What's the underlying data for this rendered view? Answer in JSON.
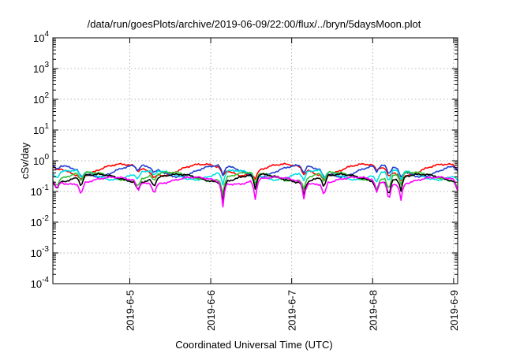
{
  "chart_data": {
    "type": "line",
    "title": "/data/run/goesPlots/archive/2019-06-09/22:00/flux/../bryn/5daysMoon.plot",
    "xlabel": "Coordinated Universal Time (UTC)",
    "ylabel": "cSv/day",
    "yscale": "log",
    "ylim": [
      0.0001,
      10000
    ],
    "xlim": [
      0,
      5
    ],
    "grid": true,
    "y_ticks": [
      {
        "value": 0.0001,
        "base": "10",
        "exp": "-4"
      },
      {
        "value": 0.001,
        "base": "10",
        "exp": "-3"
      },
      {
        "value": 0.01,
        "base": "10",
        "exp": "-2"
      },
      {
        "value": 0.1,
        "base": "10",
        "exp": "-1"
      },
      {
        "value": 1,
        "base": "10",
        "exp": "0"
      },
      {
        "value": 10,
        "base": "10",
        "exp": "1"
      },
      {
        "value": 100,
        "base": "10",
        "exp": "2"
      },
      {
        "value": 1000,
        "base": "10",
        "exp": "3"
      },
      {
        "value": 10000,
        "base": "10",
        "exp": "4"
      }
    ],
    "x_ticks": [
      {
        "value": 0.95,
        "label": "2019-6-5"
      },
      {
        "value": 1.95,
        "label": "2019-6-6"
      },
      {
        "value": 2.95,
        "label": "2019-6-7"
      },
      {
        "value": 3.95,
        "label": "2019-6-8"
      },
      {
        "value": 4.95,
        "label": "2019-6-9"
      }
    ],
    "x_step_days": 0.02,
    "series": [
      {
        "color": "#ff0000",
        "base": 0.55,
        "amp": 0.22,
        "phase": 0.4
      },
      {
        "color": "#1f3fd1",
        "base": 0.5,
        "amp": 0.2,
        "phase": 0.2
      },
      {
        "color": "#00e0e0",
        "base": 0.36,
        "amp": 0.12,
        "phase": 0.0
      },
      {
        "color": "#39c139",
        "base": 0.32,
        "amp": 0.1,
        "phase": -0.2
      },
      {
        "color": "#000000",
        "base": 0.28,
        "amp": 0.08,
        "phase": -0.3
      },
      {
        "color": "#ff00ff",
        "base": 0.23,
        "amp": 0.06,
        "phase": -0.5
      }
    ],
    "dips": [
      {
        "x": 0.05,
        "depth": 0.45
      },
      {
        "x": 0.35,
        "depth": 0.6
      },
      {
        "x": 1.05,
        "depth": 0.55
      },
      {
        "x": 1.25,
        "depth": 0.5
      },
      {
        "x": 2.1,
        "depth": 0.85
      },
      {
        "x": 2.5,
        "depth": 0.75
      },
      {
        "x": 3.1,
        "depth": 0.7
      },
      {
        "x": 3.35,
        "depth": 0.65
      },
      {
        "x": 4.0,
        "depth": 0.6
      },
      {
        "x": 4.15,
        "depth": 0.8
      },
      {
        "x": 4.3,
        "depth": 0.7
      },
      {
        "x": 5.0,
        "depth": 0.55
      },
      {
        "x": 5.2,
        "depth": 0.7
      }
    ]
  }
}
